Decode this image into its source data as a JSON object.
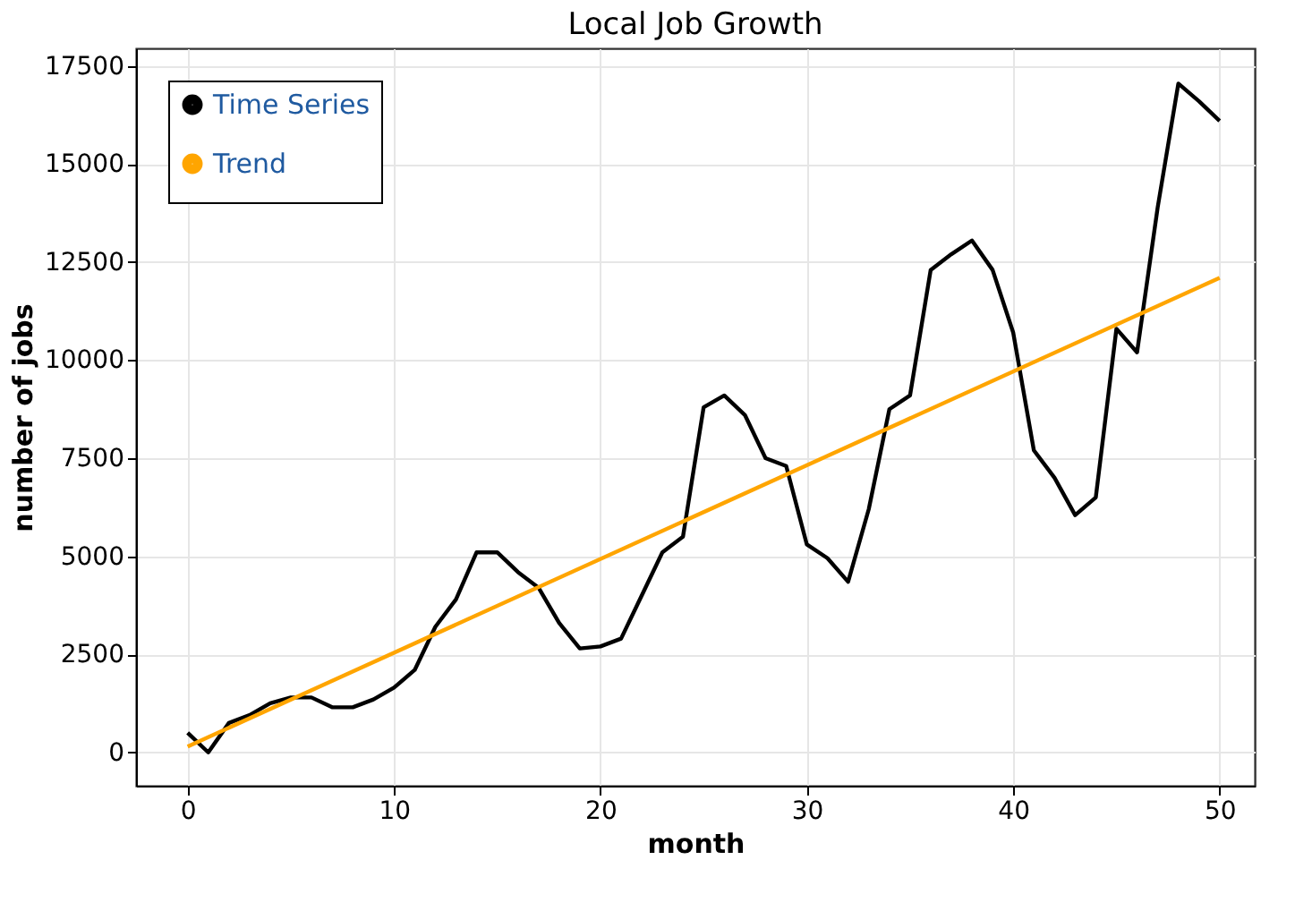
{
  "chart_data": {
    "type": "line",
    "title": "Local Job Growth",
    "xlabel": "month",
    "ylabel": "number of jobs",
    "series": [
      {
        "name": "Time Series",
        "color": "#000000",
        "x": [
          0,
          1,
          2,
          3,
          4,
          5,
          6,
          7,
          8,
          9,
          10,
          11,
          12,
          13,
          14,
          15,
          16,
          17,
          18,
          19,
          20,
          21,
          22,
          23,
          24,
          25,
          26,
          27,
          28,
          29,
          30,
          31,
          32,
          33,
          34,
          35,
          36,
          37,
          38,
          39,
          40,
          41,
          42,
          43,
          44,
          45,
          46,
          47,
          48,
          49,
          50
        ],
        "values": [
          500,
          0,
          750,
          950,
          1250,
          1400,
          1400,
          1150,
          1150,
          1350,
          1650,
          2100,
          3200,
          3900,
          5100,
          5100,
          4600,
          4200,
          3300,
          2650,
          2700,
          2900,
          4000,
          5100,
          5500,
          8800,
          9100,
          8600,
          7500,
          7300,
          5300,
          4950,
          4350,
          6200,
          8750,
          9100,
          12300,
          12700,
          13050,
          12300,
          10700,
          7700,
          7000,
          6050,
          6500,
          10800,
          10200,
          13900,
          17050,
          16600,
          16100
        ]
      },
      {
        "name": "Trend",
        "color": "#ffa500",
        "x": [
          0,
          50
        ],
        "values": [
          150,
          12100
        ]
      }
    ],
    "xlim": [
      -2.5,
      51.7
    ],
    "ylim": [
      -850,
      17950
    ],
    "xticks": [
      0,
      10,
      20,
      30,
      40,
      50
    ],
    "yticks": [
      0,
      2500,
      5000,
      7500,
      10000,
      12500,
      15000,
      17500
    ],
    "grid": true,
    "legend": "top left"
  }
}
